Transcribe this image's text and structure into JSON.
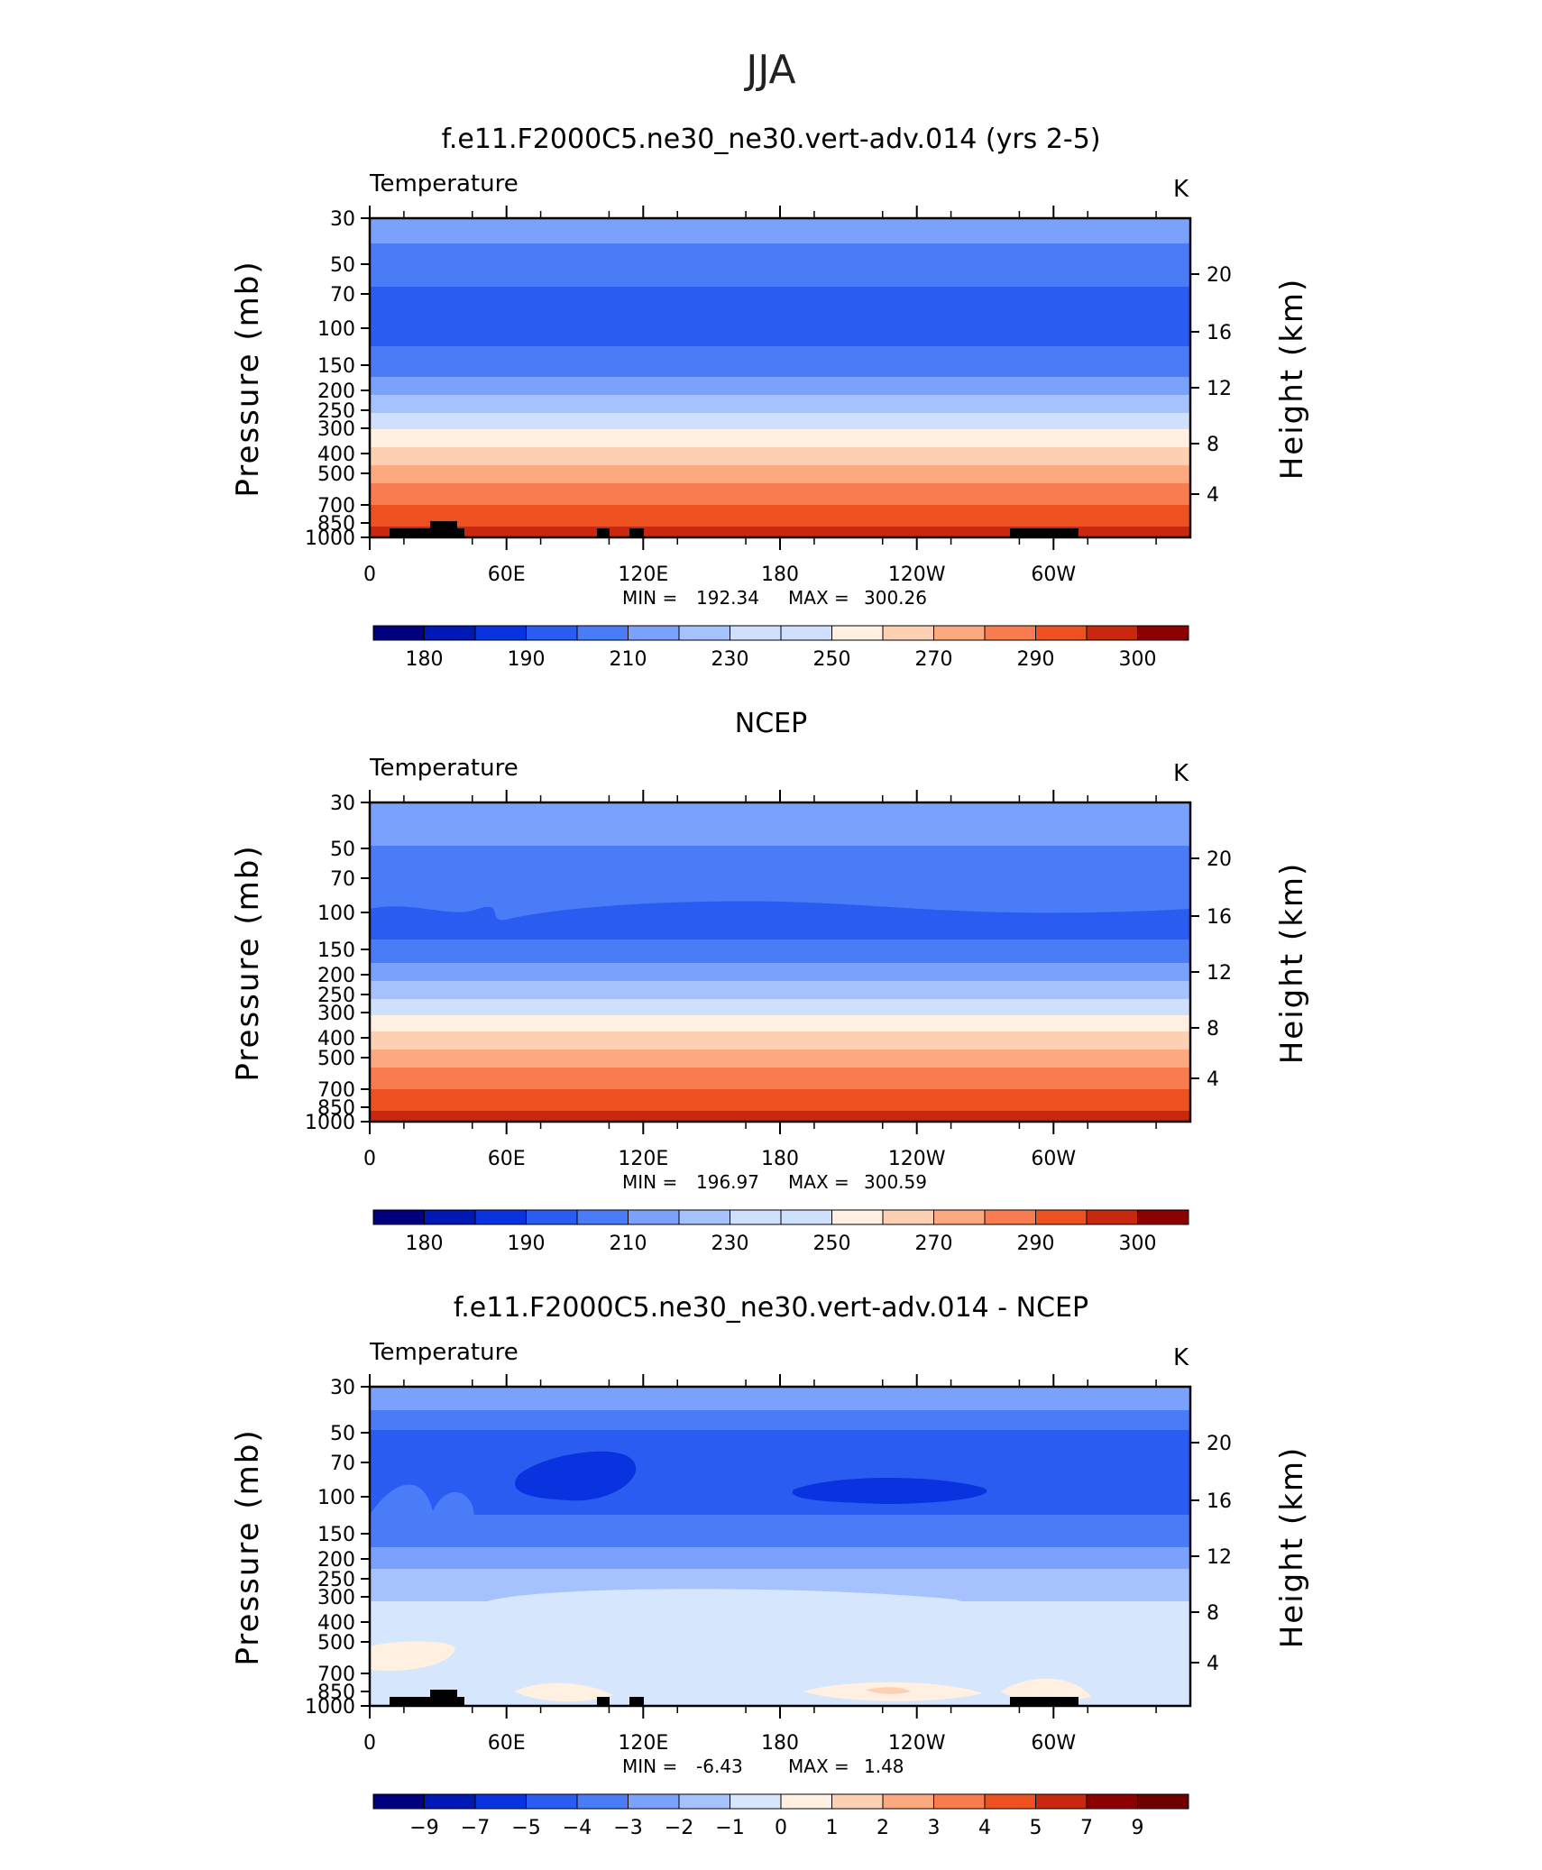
{
  "figure": {
    "title": "JJA"
  },
  "chart_data": [
    {
      "type": "heatmap",
      "title": "f.e11.F2000C5.ne30_ne30.vert-adv.014 (yrs 2-5)",
      "subtitle_left": "Temperature",
      "units": "K",
      "ylabel": "Pressure (mb)",
      "ylabel_right": "Height (km)",
      "x_ticks": [
        "0",
        "60E",
        "120E",
        "180",
        "120W",
        "60W"
      ],
      "y_ticks": [
        "30",
        "50",
        "70",
        "100",
        "150",
        "200",
        "250",
        "300",
        "400",
        "500",
        "700",
        "850",
        "1000"
      ],
      "y2_ticks": [
        "20",
        "16",
        "12",
        "8",
        "4"
      ],
      "stats": {
        "min_label": "MIN =",
        "min": "192.34",
        "max_label": "MAX =",
        "max": "300.26"
      },
      "colorbar_labels": [
        "180",
        "190",
        "210",
        "230",
        "250",
        "270",
        "290",
        "300"
      ],
      "colors": [
        "#00007f",
        "#0018b4",
        "#0a33e0",
        "#2a5cf2",
        "#4a7cf8",
        "#7aa2fc",
        "#a6c2fe",
        "#cfe0ff",
        "#fff0e2",
        "#fdcfb3",
        "#fca980",
        "#f87c4f",
        "#ee5120",
        "#c7280e",
        "#8b0000"
      ]
    },
    {
      "type": "heatmap",
      "title": "NCEP",
      "subtitle_left": "Temperature",
      "units": "K",
      "ylabel": "Pressure (mb)",
      "ylabel_right": "Height (km)",
      "x_ticks": [
        "0",
        "60E",
        "120E",
        "180",
        "120W",
        "60W"
      ],
      "y_ticks": [
        "30",
        "50",
        "70",
        "100",
        "150",
        "200",
        "250",
        "300",
        "400",
        "500",
        "700",
        "850",
        "1000"
      ],
      "y2_ticks": [
        "20",
        "16",
        "12",
        "8",
        "4"
      ],
      "stats": {
        "min_label": "MIN =",
        "min": "196.97",
        "max_label": "MAX =",
        "max": "300.59"
      },
      "colorbar_labels": [
        "180",
        "190",
        "210",
        "230",
        "250",
        "270",
        "290",
        "300"
      ],
      "colors": [
        "#00007f",
        "#0018b4",
        "#0a33e0",
        "#2a5cf2",
        "#4a7cf8",
        "#7aa2fc",
        "#a6c2fe",
        "#cfe0ff",
        "#fff0e2",
        "#fdcfb3",
        "#fca980",
        "#f87c4f",
        "#ee5120",
        "#c7280e",
        "#8b0000"
      ]
    },
    {
      "type": "heatmap",
      "title": "f.e11.F2000C5.ne30_ne30.vert-adv.014 - NCEP",
      "subtitle_left": "Temperature",
      "units": "K",
      "ylabel": "Pressure (mb)",
      "ylabel_right": "Height (km)",
      "x_ticks": [
        "0",
        "60E",
        "120E",
        "180",
        "120W",
        "60W"
      ],
      "y_ticks": [
        "30",
        "50",
        "70",
        "100",
        "150",
        "200",
        "250",
        "300",
        "400",
        "500",
        "700",
        "850",
        "1000"
      ],
      "y2_ticks": [
        "20",
        "16",
        "12",
        "8",
        "4"
      ],
      "stats": {
        "min_label": "MIN =",
        "min": "-6.43",
        "max_label": "MAX =",
        "max": "1.48"
      },
      "colorbar_labels": [
        "−9",
        "−7",
        "−5",
        "−4",
        "−3",
        "−2",
        "−1",
        "0",
        "1",
        "2",
        "3",
        "4",
        "5",
        "7",
        "9"
      ],
      "colors": [
        "#00007f",
        "#0018b4",
        "#0a33e0",
        "#2a5cf2",
        "#4a7cf8",
        "#7aa2fc",
        "#a6c2fe",
        "#d6e6fd",
        "#fff0e2",
        "#fdcfb3",
        "#fca980",
        "#f87c4f",
        "#ee5120",
        "#c7280e",
        "#8b0000",
        "#6e0000"
      ]
    }
  ]
}
